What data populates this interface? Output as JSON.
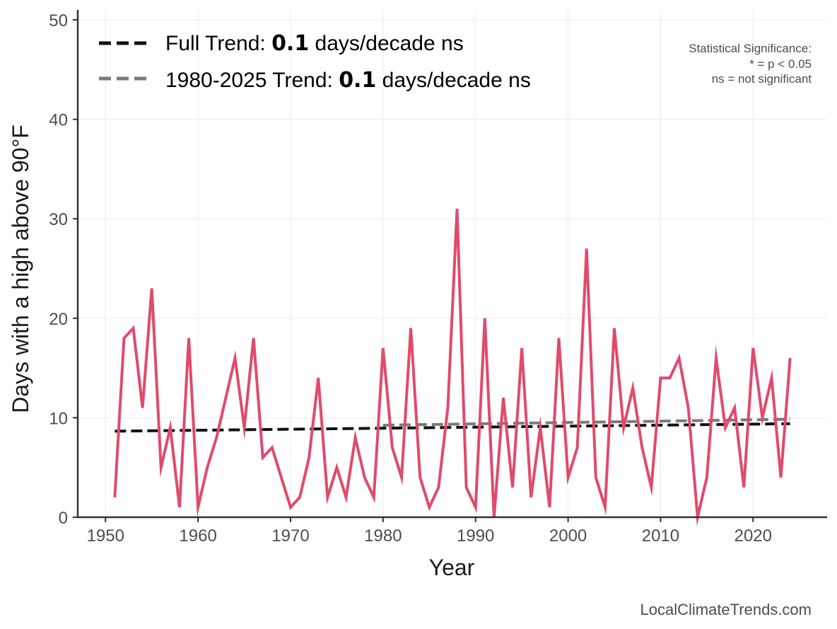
{
  "colors": {
    "series": "#e04b6b",
    "full_trend": "#111111",
    "recent_trend": "#7a7a7a",
    "grid": "#ececec",
    "axis": "#333333"
  },
  "chart_data": {
    "type": "line",
    "title": "",
    "xlabel": "Year",
    "ylabel": "Days with a high above 90°F",
    "xlim": [
      1947,
      2028
    ],
    "ylim": [
      0,
      51
    ],
    "xticks": [
      1950,
      1960,
      1970,
      1980,
      1990,
      2000,
      2010,
      2020
    ],
    "yticks": [
      0,
      10,
      20,
      30,
      40,
      50
    ],
    "grid": true,
    "legend_position": "top-left",
    "series": [
      {
        "x": [
          1951,
          1952,
          1953,
          1954,
          1955,
          1956,
          1957,
          1958,
          1959,
          1960,
          1961,
          1962,
          1963,
          1964,
          1965,
          1966,
          1967,
          1968,
          1969,
          1970,
          1971,
          1972,
          1973,
          1974,
          1975,
          1976,
          1977,
          1978,
          1979,
          1980,
          1981,
          1982,
          1983,
          1984,
          1985,
          1986,
          1987,
          1988,
          1989,
          1990,
          1991,
          1992,
          1993,
          1994,
          1995,
          1996,
          1997,
          1998,
          1999,
          2000,
          2001,
          2002,
          2003,
          2004,
          2005,
          2006,
          2007,
          2008,
          2009,
          2010,
          2011,
          2012,
          2013,
          2014,
          2015,
          2016,
          2017,
          2018,
          2019,
          2020,
          2021,
          2022,
          2023,
          2024
        ],
        "values": [
          2,
          18,
          19,
          11,
          23,
          5,
          9,
          1,
          18,
          1,
          5,
          8,
          12,
          16,
          9,
          18,
          6,
          7,
          4,
          1,
          2,
          6,
          14,
          2,
          5,
          2,
          8,
          4,
          2,
          17,
          7,
          4,
          19,
          4,
          1,
          3,
          11,
          31,
          3,
          1,
          20,
          0,
          12,
          3,
          17,
          2,
          9,
          1,
          18,
          4,
          7,
          27,
          4,
          1,
          19,
          9,
          13,
          7,
          3,
          14,
          14,
          16,
          11,
          0,
          4,
          16,
          9,
          11,
          3,
          17,
          10,
          14,
          4,
          16
        ]
      }
    ],
    "trend_lines": [
      {
        "x": [
          1951,
          2024
        ],
        "values": [
          8.65,
          9.4
        ]
      },
      {
        "x": [
          1980,
          2024
        ],
        "values": [
          9.25,
          9.85
        ]
      }
    ],
    "legend": [
      {
        "prefix": "Full Trend: ",
        "value": "0.1",
        "suffix": " days/decade ns"
      },
      {
        "prefix": "1980-2025 Trend: ",
        "value": "0.1",
        "suffix": " days/decade ns"
      }
    ],
    "annotation": [
      "Statistical Significance:",
      "* = p < 0.05",
      "ns = not significant"
    ],
    "credit": "LocalClimateTrends.com"
  }
}
